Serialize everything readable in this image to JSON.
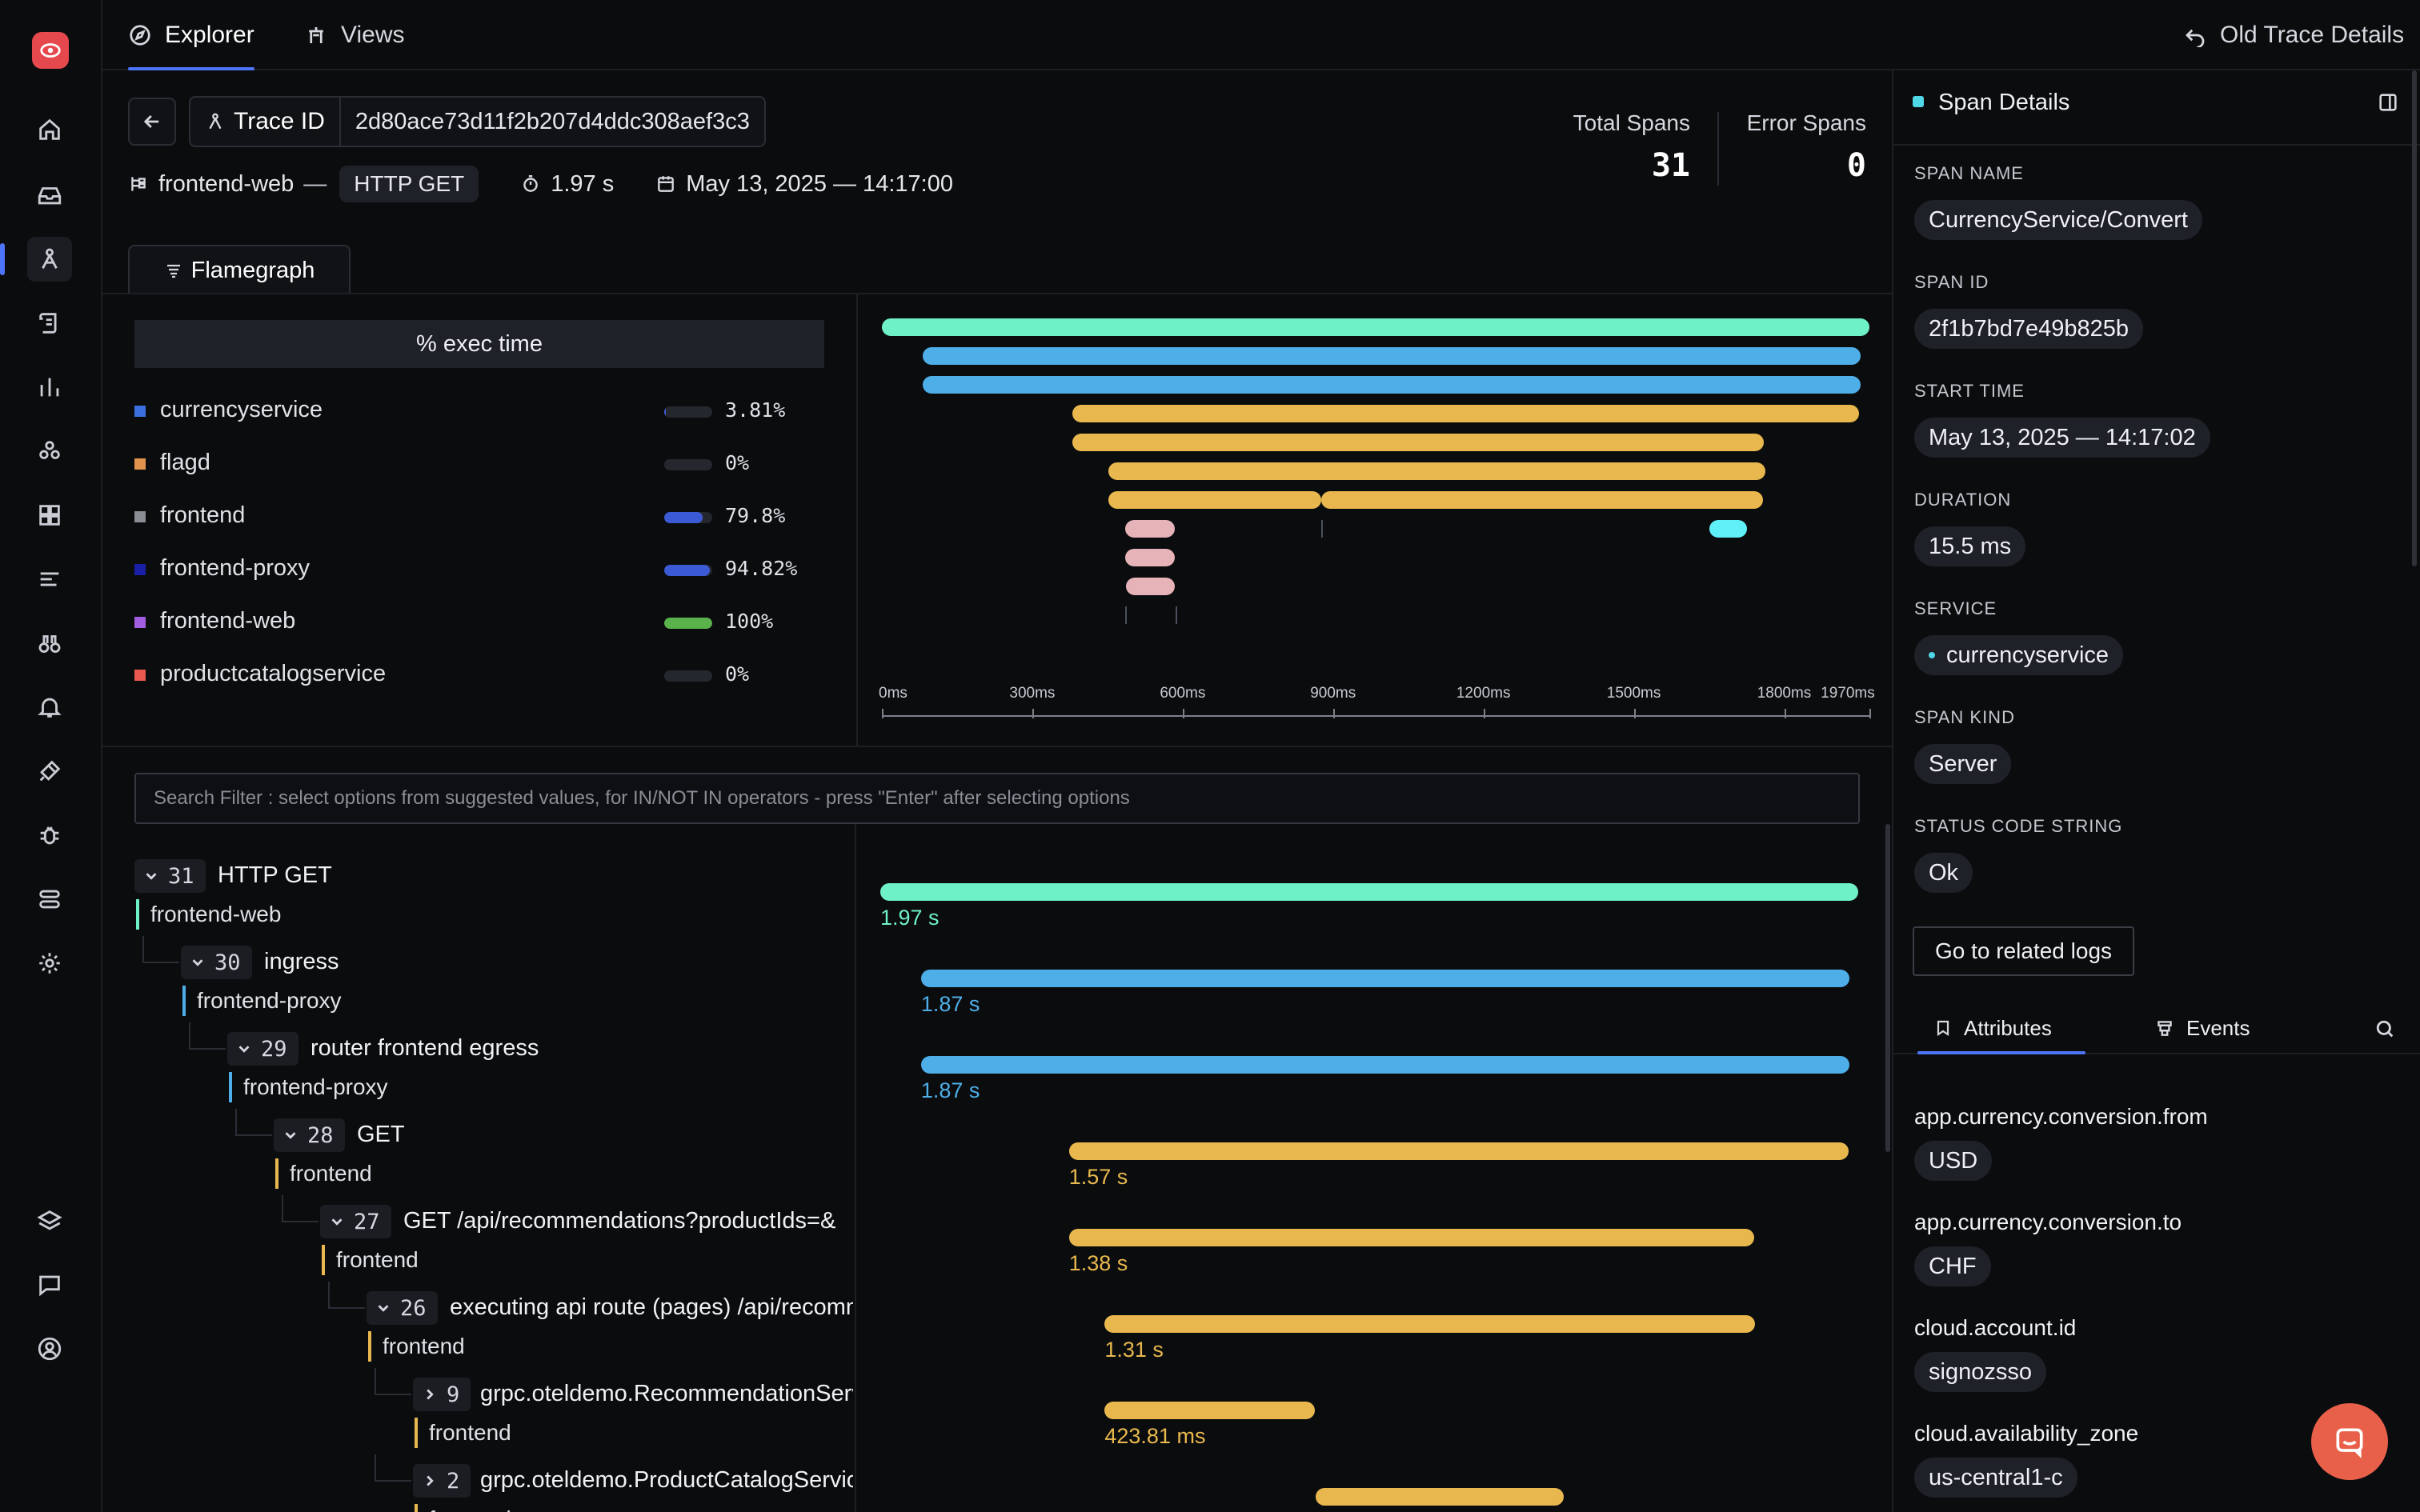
{
  "topbar": {
    "tabs": [
      {
        "label": "Explorer"
      },
      {
        "label": "Views"
      }
    ],
    "old_trace": "Old Trace Details"
  },
  "header": {
    "trace_id_label": "Trace ID",
    "trace_id": "2d80ace73d11f2b207d4ddc308aef3c3",
    "service": "frontend-web",
    "dash": "—",
    "method": "HTTP GET",
    "duration": "1.97 s",
    "datetime": "May 13, 2025 — 14:17:00",
    "total_spans_label": "Total Spans",
    "total_spans": "31",
    "error_spans_label": "Error Spans",
    "error_spans": "0"
  },
  "flamegraph": {
    "tab": "Flamegraph",
    "exec_header": "% exec time",
    "legend": [
      {
        "service": "currencyservice",
        "pct": "3.81%",
        "value": 0.0381,
        "color": "#3b6fe0",
        "fill": "#3b5bd6"
      },
      {
        "service": "flagd",
        "pct": "0%",
        "value": 0,
        "color": "#e2934b",
        "fill": "#3b5bd6"
      },
      {
        "service": "frontend",
        "pct": "79.8%",
        "value": 0.798,
        "color": "#8a8d94",
        "fill": "#3b5bd6"
      },
      {
        "service": "frontend-proxy",
        "pct": "94.82%",
        "value": 0.9482,
        "color": "#1a1fa8",
        "fill": "#3b5bd6"
      },
      {
        "service": "frontend-web",
        "pct": "100%",
        "value": 1.0,
        "color": "#a35de0",
        "fill": "#59b34a"
      },
      {
        "service": "productcatalogservice",
        "pct": "0%",
        "value": 0,
        "color": "#e85a4f",
        "fill": "#3b5bd6"
      }
    ],
    "axis_ticks": [
      "0ms",
      "300ms",
      "600ms",
      "900ms",
      "1200ms",
      "1500ms",
      "1800ms",
      "1970ms"
    ]
  },
  "search": {
    "placeholder": "Search Filter : select options from suggested values, for IN/NOT IN operators - press \"Enter\" after selecting options"
  },
  "spans": [
    {
      "count": "31",
      "name": "HTTP GET",
      "service": "frontend-web",
      "duration": "1.97 s",
      "color": "#6ff1c8",
      "start": 0,
      "dur": 1970,
      "expanded": true
    },
    {
      "count": "30",
      "name": "ingress",
      "service": "frontend-proxy",
      "duration": "1.87 s",
      "color": "#4eaee8",
      "start": 82,
      "dur": 1870,
      "expanded": true
    },
    {
      "count": "29",
      "name": "router frontend egress",
      "service": "frontend-proxy",
      "duration": "1.87 s",
      "color": "#4eaee8",
      "start": 82,
      "dur": 1870,
      "expanded": true
    },
    {
      "count": "28",
      "name": "GET",
      "service": "frontend",
      "duration": "1.57 s",
      "color": "#e8b84e",
      "start": 380,
      "dur": 1570,
      "expanded": true
    },
    {
      "count": "27",
      "name": "GET /api/recommendations?productIds=&",
      "service": "frontend",
      "duration": "1.38 s",
      "color": "#e8b84e",
      "start": 380,
      "dur": 1380,
      "expanded": true
    },
    {
      "count": "26",
      "name": "executing api route (pages) /api/recommendations",
      "service": "frontend",
      "duration": "1.31 s",
      "color": "#e8b84e",
      "start": 452,
      "dur": 1310,
      "expanded": true
    },
    {
      "count": "9",
      "name": "grpc.oteldemo.RecommendationService/ListRecommendations",
      "service": "frontend",
      "duration": "423.81 ms",
      "color": "#e8b84e",
      "start": 452,
      "dur": 424,
      "expanded": false
    },
    {
      "count": "2",
      "name": "grpc.oteldemo.ProductCatalogService/GetProduct",
      "service": "frontend",
      "duration": "",
      "color": "#e8b84e",
      "start": 877,
      "dur": 500,
      "expanded": false
    }
  ],
  "details": {
    "title": "Span Details",
    "span_name_label": "SPAN NAME",
    "span_name": "CurrencyService/Convert",
    "span_id_label": "SPAN ID",
    "span_id": "2f1b7bd7e49b825b",
    "start_time_label": "START TIME",
    "start_time": "May 13, 2025 — 14:17:02",
    "duration_label": "DURATION",
    "duration": "15.5 ms",
    "service_label": "SERVICE",
    "service": "currencyservice",
    "span_kind_label": "SPAN KIND",
    "span_kind": "Server",
    "status_label": "STATUS CODE STRING",
    "status": "Ok",
    "related_logs": "Go to related logs",
    "tab_attributes": "Attributes",
    "tab_events": "Events",
    "attributes": [
      {
        "key": "app.currency.conversion.from",
        "value": "USD"
      },
      {
        "key": "app.currency.conversion.to",
        "value": "CHF"
      },
      {
        "key": "cloud.account.id",
        "value": "signozsso"
      },
      {
        "key": "cloud.availability_zone",
        "value": "us-central1-c"
      }
    ]
  },
  "colors": {
    "accent": "#4e74f8",
    "panel": "#1e2128"
  }
}
